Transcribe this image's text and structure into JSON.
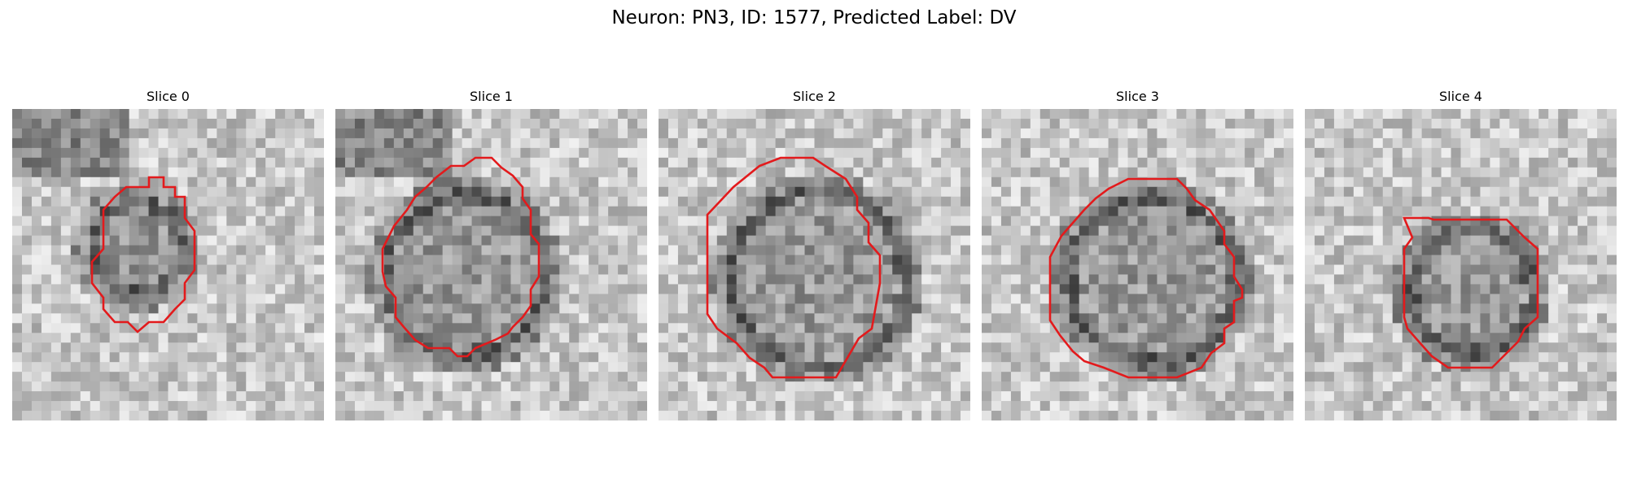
{
  "figure": {
    "title": "Neuron: PN3, ID: 1577, Predicted Label: DV"
  },
  "panels": [
    {
      "title": "Slice 0",
      "contour_color": "#e31a1c"
    },
    {
      "title": "Slice 1",
      "contour_color": "#e31a1c"
    },
    {
      "title": "Slice 2",
      "contour_color": "#e31a1c"
    },
    {
      "title": "Slice 3",
      "contour_color": "#e31a1c"
    },
    {
      "title": "Slice 4",
      "contour_color": "#e31a1c"
    }
  ],
  "colormap": "gray"
}
